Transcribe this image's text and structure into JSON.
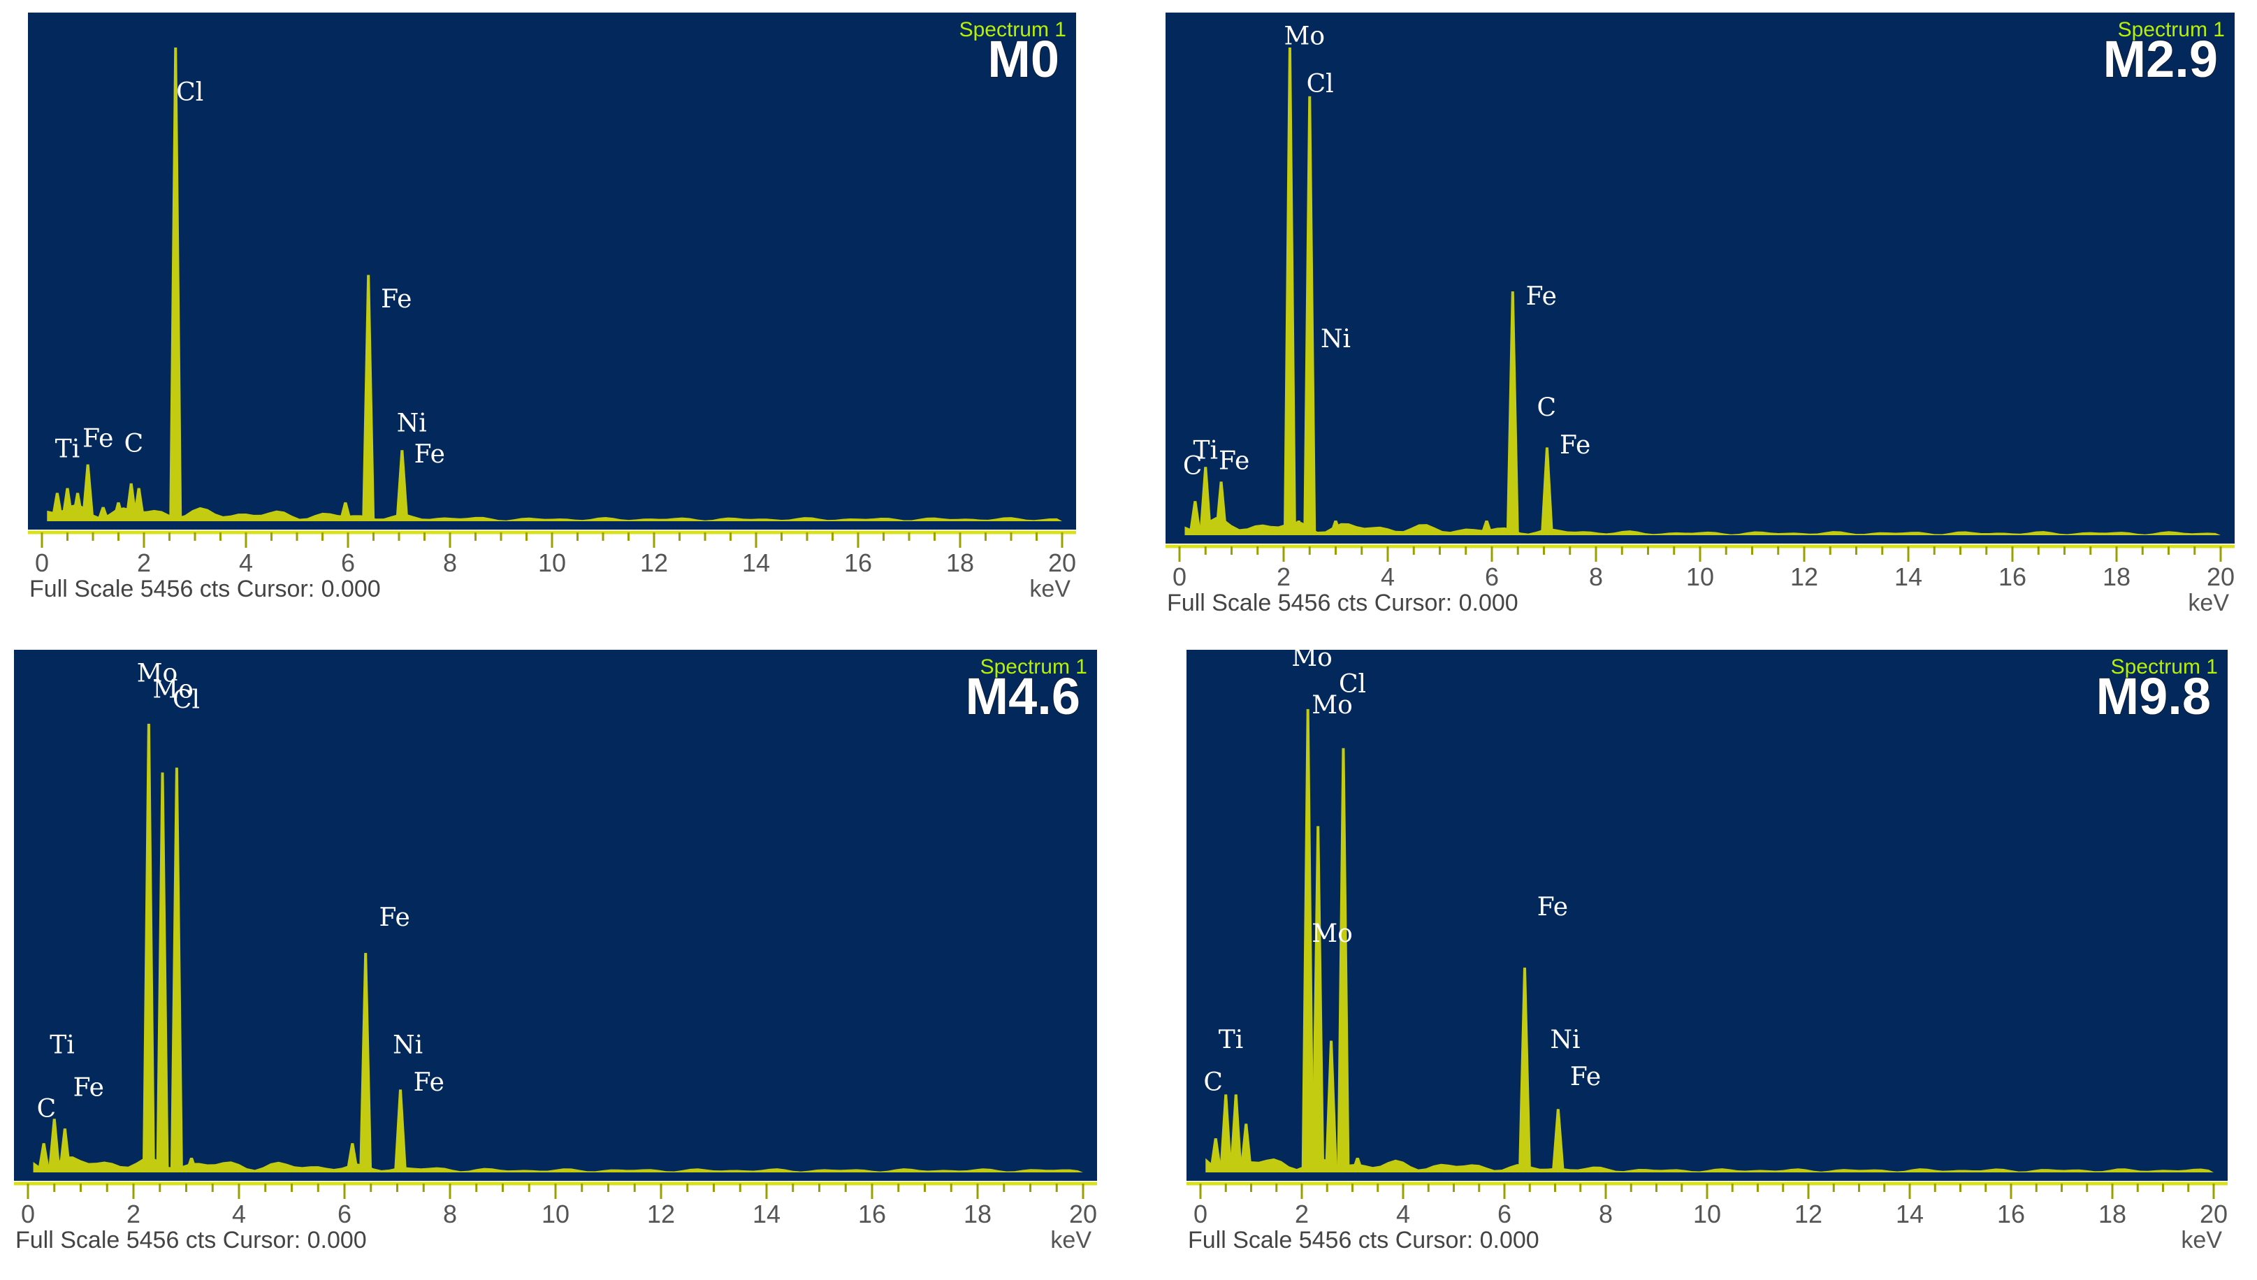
{
  "colors": {
    "plot_background": "#03285c",
    "spectrum": "#d9e000",
    "spectrum_label": "#b8f000",
    "sample_label": "#ffffff"
  },
  "chart_data": [
    {
      "type": "line",
      "title": "M0",
      "legend": "Spectrum 1",
      "xlabel": "keV",
      "footer": "Full Scale 5456 cts Cursor: 0.000",
      "xlim": [
        0,
        20
      ],
      "ylim": [
        0,
        1
      ],
      "xticks": [
        "0",
        "2",
        "4",
        "6",
        "8",
        "10",
        "12",
        "14",
        "16",
        "18",
        "20"
      ],
      "series": [
        {
          "x": [
            0.3,
            0.5,
            0.7,
            0.9,
            1.2,
            1.5,
            1.75,
            1.9,
            2.62,
            3.0,
            5.95,
            6.4,
            7.06
          ],
          "values": [
            0.06,
            0.07,
            0.06,
            0.12,
            0.03,
            0.04,
            0.08,
            0.07,
            1.0,
            0.02,
            0.04,
            0.52,
            0.15
          ]
        }
      ],
      "annotations": [
        {
          "text": "Ti",
          "x": 0.5
        },
        {
          "text": "Fe",
          "x": 1.1
        },
        {
          "text": "C",
          "x": 1.8
        },
        {
          "text": "Cl",
          "x": 2.9
        },
        {
          "text": "Fe",
          "x": 6.95
        },
        {
          "text": "Ni",
          "x": 7.25
        },
        {
          "text": "Fe",
          "x": 7.6
        }
      ]
    },
    {
      "type": "line",
      "title": "M2.9",
      "legend": "Spectrum 1",
      "xlabel": "keV",
      "footer": "Full Scale 5456 cts Cursor: 0.000",
      "xlim": [
        0,
        20
      ],
      "ylim": [
        0,
        1
      ],
      "xticks": [
        "0",
        "2",
        "4",
        "6",
        "8",
        "10",
        "12",
        "14",
        "16",
        "18",
        "20"
      ],
      "series": [
        {
          "x": [
            0.3,
            0.5,
            0.8,
            2.12,
            2.29,
            2.5,
            3.0,
            5.9,
            6.4,
            7.06
          ],
          "values": [
            0.07,
            0.14,
            0.11,
            1.0,
            0.03,
            0.9,
            0.03,
            0.03,
            0.5,
            0.18
          ]
        }
      ],
      "annotations": [
        {
          "text": "Ti",
          "x": 0.5
        },
        {
          "text": "C",
          "x": 0.25
        },
        {
          "text": "Fe",
          "x": 1.05
        },
        {
          "text": "Mo",
          "x": 2.4
        },
        {
          "text": "Cl",
          "x": 2.7
        },
        {
          "text": "Ni",
          "x": 3.0
        },
        {
          "text": "Fe",
          "x": 6.95
        },
        {
          "text": "C",
          "x": 7.05
        },
        {
          "text": "Fe",
          "x": 7.6
        }
      ]
    },
    {
      "type": "line",
      "title": "M4.6",
      "legend": "Spectrum 1",
      "xlabel": "keV",
      "footer": "Full Scale 5456 cts Cursor: 0.000",
      "xlim": [
        0,
        20
      ],
      "ylim": [
        0,
        1
      ],
      "xticks": [
        "0",
        "2",
        "4",
        "6",
        "8",
        "10",
        "12",
        "14",
        "16",
        "18",
        "20"
      ],
      "series": [
        {
          "x": [
            0.3,
            0.5,
            0.7,
            2.29,
            2.55,
            2.82,
            3.1,
            6.15,
            6.4,
            7.06
          ],
          "values": [
            0.06,
            0.11,
            0.09,
            0.92,
            0.82,
            0.83,
            0.03,
            0.06,
            0.45,
            0.17
          ]
        }
      ],
      "annotations": [
        {
          "text": "Mo",
          "x": 2.45
        },
        {
          "text": "Mo",
          "x": 2.75
        },
        {
          "text": "Cl",
          "x": 3.0
        },
        {
          "text": "Ti",
          "x": 0.65
        },
        {
          "text": "C",
          "x": 0.35
        },
        {
          "text": "Fe",
          "x": 1.15
        },
        {
          "text": "Fe",
          "x": 6.95
        },
        {
          "text": "Ni",
          "x": 7.2
        },
        {
          "text": "Fe",
          "x": 7.6
        }
      ]
    },
    {
      "type": "line",
      "title": "M9.8",
      "legend": "Spectrum 1",
      "xlabel": "keV",
      "footer": "Full Scale 5456 cts Cursor: 0.000",
      "xlim": [
        0,
        20
      ],
      "ylim": [
        0,
        1
      ],
      "xticks": [
        "0",
        "2",
        "4",
        "6",
        "8",
        "10",
        "12",
        "14",
        "16",
        "18",
        "20"
      ],
      "series": [
        {
          "x": [
            0.3,
            0.5,
            0.7,
            0.9,
            2.12,
            2.32,
            2.58,
            2.82,
            3.1,
            6.4,
            7.06
          ],
          "values": [
            0.07,
            0.16,
            0.16,
            0.1,
            0.95,
            0.71,
            0.27,
            0.87,
            0.03,
            0.42,
            0.13
          ]
        }
      ],
      "annotations": [
        {
          "text": "Mo",
          "x": 2.2
        },
        {
          "text": "Cl",
          "x": 3.0
        },
        {
          "text": "Mo",
          "x": 2.6
        },
        {
          "text": "Mo",
          "x": 2.6
        },
        {
          "text": "Ti",
          "x": 0.6
        },
        {
          "text": "C",
          "x": 0.25
        },
        {
          "text": "Fe",
          "x": 6.95
        },
        {
          "text": "Ni",
          "x": 7.2
        },
        {
          "text": "Fe",
          "x": 7.6
        }
      ]
    }
  ]
}
